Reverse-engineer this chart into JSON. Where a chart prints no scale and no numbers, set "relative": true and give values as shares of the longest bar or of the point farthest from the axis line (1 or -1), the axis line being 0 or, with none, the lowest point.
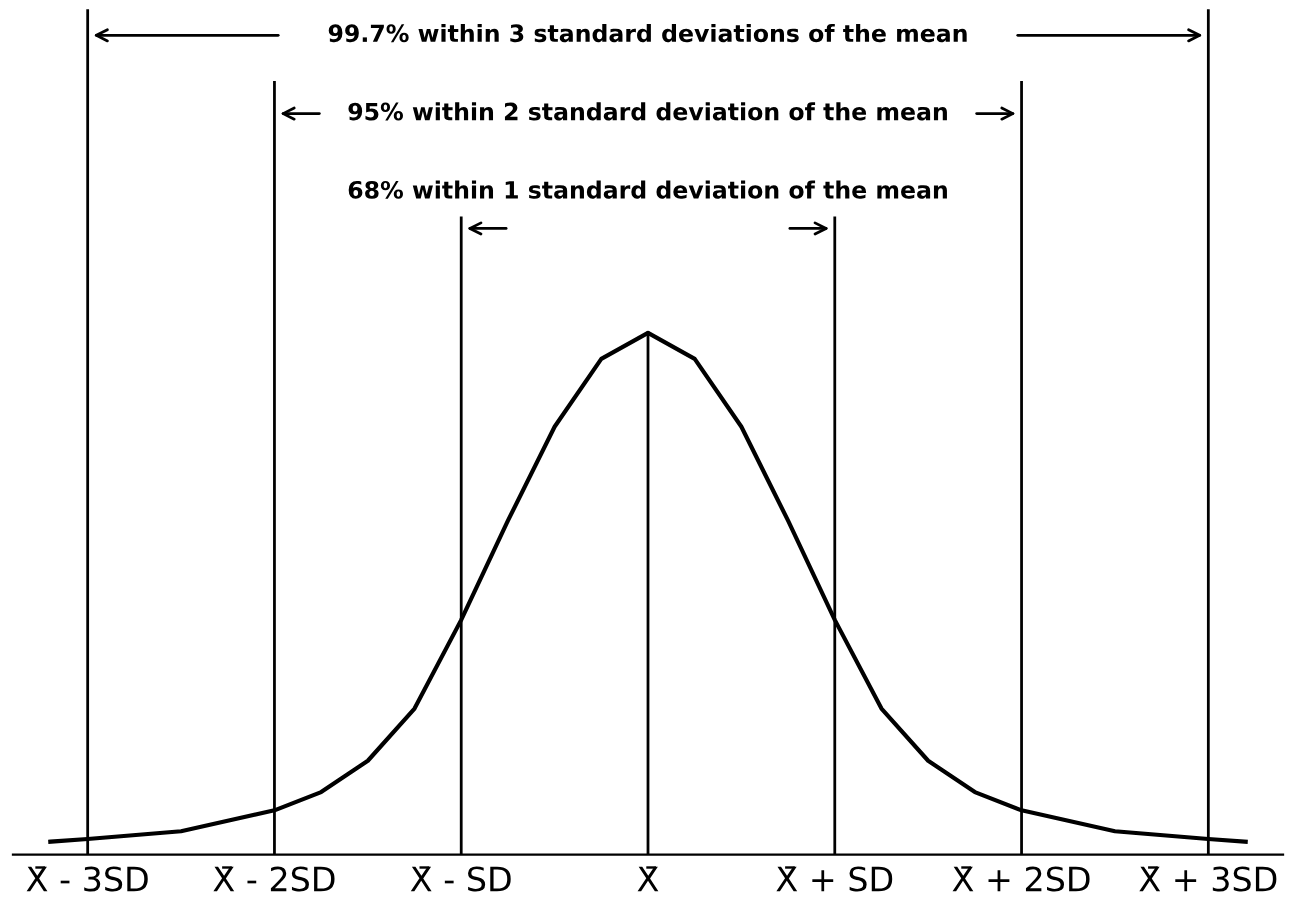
{
  "chart_data": {
    "type": "line",
    "relative": true,
    "x": [
      -3.2,
      -3,
      -2.5,
      -2,
      -1.75,
      -1.5,
      -1.25,
      -1,
      -0.75,
      -0.5,
      -0.25,
      0,
      0.25,
      0.5,
      0.75,
      1,
      1.25,
      1.5,
      1.75,
      2,
      2.5,
      3,
      3.2
    ],
    "series": [
      {
        "color": "#000000",
        "values": [
          0.025,
          0.03,
          0.045,
          0.085,
          0.12,
          0.18,
          0.28,
          0.45,
          0.64,
          0.82,
          0.95,
          1,
          0.95,
          0.82,
          0.64,
          0.45,
          0.28,
          0.18,
          0.12,
          0.085,
          0.045,
          0.03,
          0.025
        ]
      }
    ],
    "xlim": [
      -3.4,
      3.4
    ],
    "xticks": [
      {
        "value": -3,
        "label": "X̄ - 3SD"
      },
      {
        "value": -2,
        "label": "X̄ - 2SD"
      },
      {
        "value": -1,
        "label": "X̄ - SD"
      },
      {
        "value": 0,
        "label": "X̄"
      },
      {
        "value": 1,
        "label": "X̄ + SD"
      },
      {
        "value": 2,
        "label": "X̄ + 2SD"
      },
      {
        "value": 3,
        "label": "X̄ + 3SD"
      }
    ],
    "ref_lines": [
      {
        "axis": "x",
        "value": -3
      },
      {
        "axis": "x",
        "value": -2
      },
      {
        "axis": "x",
        "value": -1
      },
      {
        "axis": "x",
        "value": 0
      },
      {
        "axis": "x",
        "value": 1
      },
      {
        "axis": "x",
        "value": 2
      },
      {
        "axis": "x",
        "value": 3
      }
    ],
    "annotations": [
      "99.7% within 3 standard deviations of the mean",
      "95% within 2 standard deviation of the mean",
      "68% within 1 standard deviation of the mean"
    ],
    "grid": false,
    "legend": false,
    "marker": "none",
    "line_style": "solid"
  }
}
